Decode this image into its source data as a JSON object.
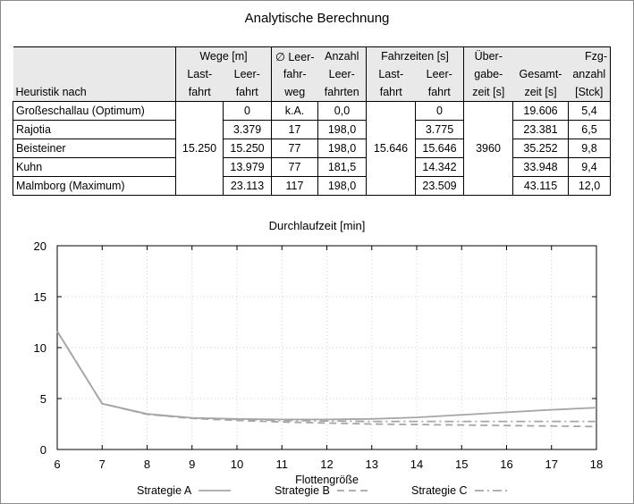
{
  "title": "Analytische Berechnung",
  "table": {
    "col_heuristik": "Heuristik nach",
    "grp_wege": "Wege [m]",
    "grp_fahrzeiten": "Fahrzeiten [s]",
    "h_lastfahrt1": "Last-",
    "h_lastfahrt2": "fahrt",
    "h_leerfahrt1": "Leer-",
    "h_leerfahrt2": "fahrt",
    "h_leerweg1": "∅ Leer-",
    "h_leerweg2": "fahr-",
    "h_leerweg3": "weg",
    "h_anzahl1": "Anzahl",
    "h_anzahl2": "Leer-",
    "h_anzahl3": "fahrten",
    "h_fz_last1": "Last-",
    "h_fz_last2": "fahrt",
    "h_fz_leer1": "Leer-",
    "h_fz_leer2": "fahrt",
    "h_ueber1": "Über-",
    "h_ueber2": "gabe-",
    "h_ueber3": "zeit [s]",
    "h_gesamt1": "Gesamt-",
    "h_gesamt2": "zeit [s]",
    "h_fzg1": "Fzg-",
    "h_fzg2": "anzahl",
    "h_fzg3": "[Stck]",
    "shared_lastfahrt_weg": "15.250",
    "shared_lastfahrt_zeit": "15.646",
    "shared_uebergabezeit": "3960",
    "rows": [
      {
        "name": "Großeschallau (Optimum)",
        "leerfahrt": "0",
        "leerweg": "k.A.",
        "anzahl": "0,0",
        "leerfahrtzeit": "0",
        "gesamt": "19.606",
        "fzg": "5,4"
      },
      {
        "name": "Rajotia",
        "leerfahrt": "3.379",
        "leerweg": "17",
        "anzahl": "198,0",
        "leerfahrtzeit": "3.775",
        "gesamt": "23.381",
        "fzg": "6,5"
      },
      {
        "name": "Beisteiner",
        "leerfahrt": "15.250",
        "leerweg": "77",
        "anzahl": "198,0",
        "leerfahrtzeit": "15.646",
        "gesamt": "35.252",
        "fzg": "9,8"
      },
      {
        "name": "Kuhn",
        "leerfahrt": "13.979",
        "leerweg": "77",
        "anzahl": "181,5",
        "leerfahrtzeit": "14.342",
        "gesamt": "33.948",
        "fzg": "9,4"
      },
      {
        "name": "Malmborg (Maximum)",
        "leerfahrt": "23.113",
        "leerweg": "117",
        "anzahl": "198,0",
        "leerfahrtzeit": "23.509",
        "gesamt": "43.115",
        "fzg": "12,0"
      }
    ]
  },
  "chart_data": {
    "type": "line",
    "title": "Durchlaufzeit [min]",
    "xlabel": "Flottengröße",
    "ylabel": "",
    "xlim": [
      6,
      18
    ],
    "ylim": [
      0,
      20
    ],
    "x_ticks": [
      6,
      7,
      8,
      9,
      10,
      11,
      12,
      13,
      14,
      15,
      16,
      17,
      18
    ],
    "y_ticks": [
      0,
      5,
      10,
      15,
      20
    ],
    "grid": true,
    "legend_position": "bottom",
    "x": [
      6,
      7,
      8,
      9,
      10,
      11,
      12,
      13,
      14,
      15,
      16,
      17,
      18
    ],
    "series": [
      {
        "name": "Strategie A",
        "style": "solid",
        "color": "#a6a6a6",
        "values": [
          11.6,
          4.5,
          3.5,
          3.1,
          3.0,
          2.95,
          2.95,
          3.0,
          3.15,
          3.4,
          3.65,
          3.9,
          4.1
        ]
      },
      {
        "name": "Strategie B",
        "style": "dashed",
        "color": "#a6a6a6",
        "values": [
          11.6,
          4.5,
          3.45,
          3.05,
          2.85,
          2.7,
          2.6,
          2.5,
          2.45,
          2.4,
          2.35,
          2.3,
          2.25
        ]
      },
      {
        "name": "Strategie C",
        "style": "dashdot",
        "color": "#a6a6a6",
        "values": [
          11.6,
          4.5,
          3.45,
          3.1,
          2.95,
          2.85,
          2.8,
          2.75,
          2.75,
          2.75,
          2.75,
          2.75,
          2.75
        ]
      }
    ]
  }
}
